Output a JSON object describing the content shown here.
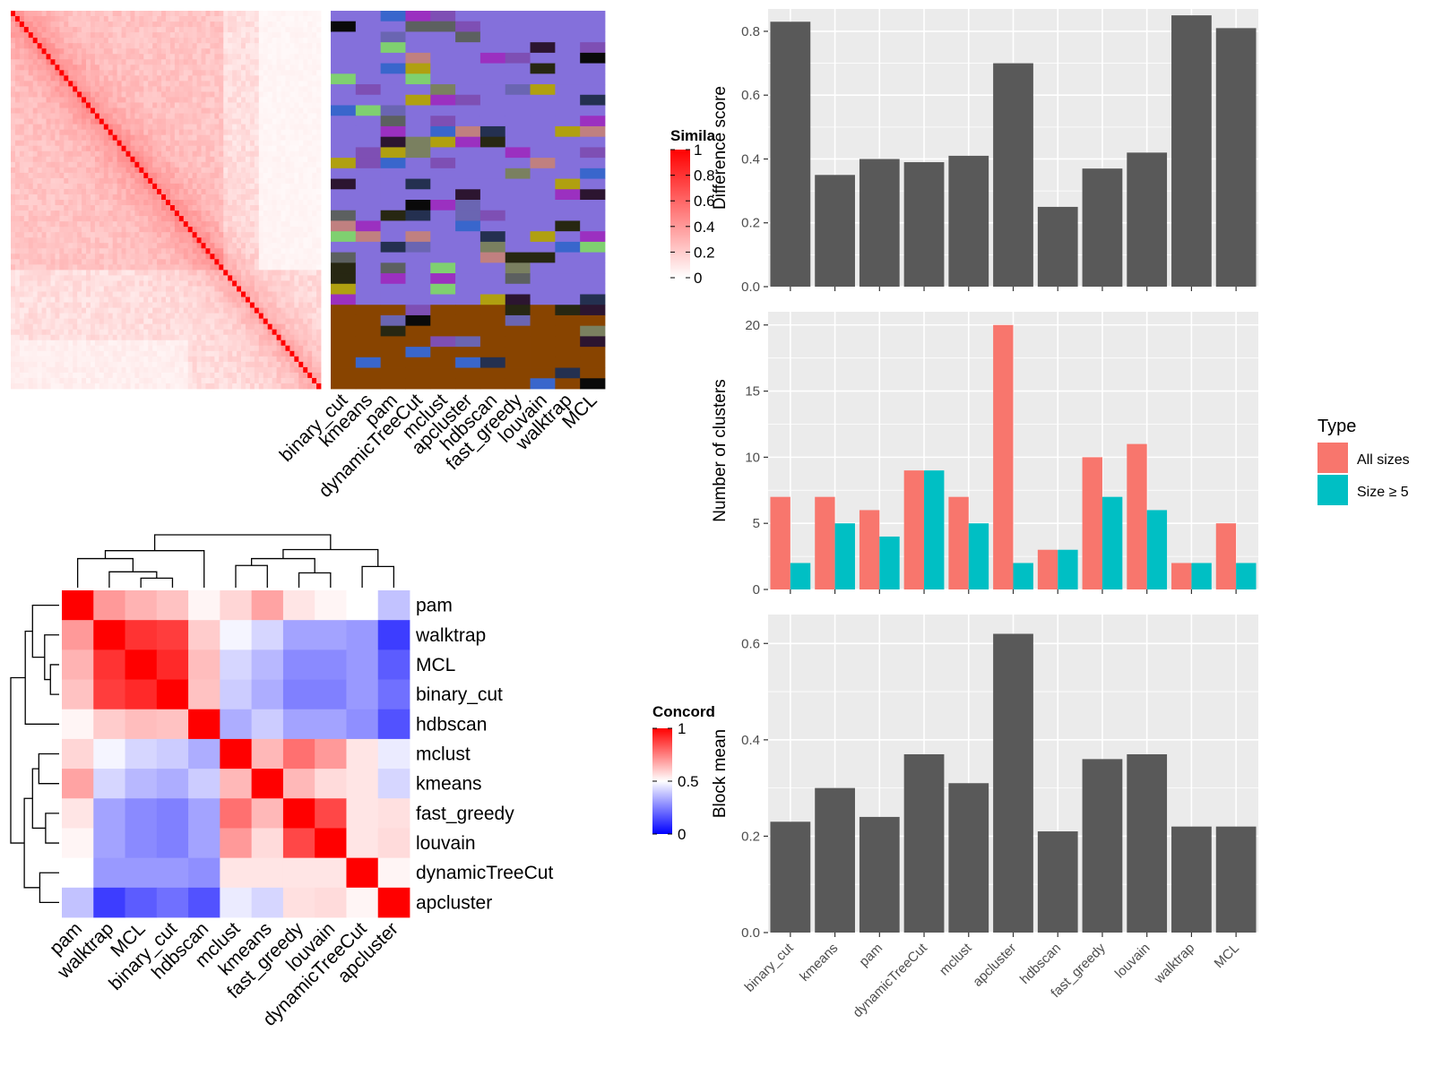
{
  "colors": {
    "panel_bg": "#ebebeb",
    "grid": "#ffffff",
    "bar": "#595959",
    "all_sizes": "#f8766d",
    "size_ge_5": "#00bfc4",
    "heat_low": "#ffffff",
    "heat_high": "#ff0000",
    "conc_low": "#0000ff",
    "conc_mid": "#ffffff",
    "conc_high": "#ff0000",
    "cluster_palette": [
      "#8470db",
      "#6a65b2",
      "#3966cc",
      "#2c1530",
      "#7a8060",
      "#7e4fb4",
      "#0a0a0a",
      "#243050",
      "#272712",
      "#c08080",
      "#9b30c0",
      "#5c6060",
      "#7fd070",
      "#b0a010",
      "#884400",
      "#a090a8",
      "#c0c0c0",
      "#5a4090"
    ]
  },
  "top_left": {
    "legend_title": "Simila",
    "legend_ticks": [
      "1",
      "0.8",
      "0.6",
      "0.4",
      "0.2",
      "0"
    ],
    "methods": [
      "binary_cut",
      "kmeans",
      "pam",
      "dynamicTreeCut",
      "mclust",
      "apcluster",
      "hdbscan",
      "fast_greedy",
      "louvain",
      "walktrap",
      "MCL"
    ]
  },
  "bottom_left": {
    "legend_title": "Concord",
    "legend_ticks": [
      "1",
      "0.5",
      "0"
    ],
    "rows": [
      "pam",
      "walktrap",
      "MCL",
      "binary_cut",
      "hdbscan",
      "mclust",
      "kmeans",
      "fast_greedy",
      "louvain",
      "dynamicTreeCut",
      "apcluster"
    ],
    "cols": [
      "pam",
      "walktrap",
      "MCL",
      "binary_cut",
      "hdbscan",
      "mclust",
      "kmeans",
      "fast_greedy",
      "louvain",
      "dynamicTreeCut",
      "apcluster"
    ],
    "matrix": [
      [
        1.0,
        0.7,
        0.65,
        0.62,
        0.52,
        0.58,
        0.68,
        0.55,
        0.52,
        0.5,
        0.38
      ],
      [
        0.7,
        1.0,
        0.9,
        0.88,
        0.6,
        0.48,
        0.42,
        0.32,
        0.32,
        0.3,
        0.12
      ],
      [
        0.65,
        0.9,
        1.0,
        0.92,
        0.63,
        0.42,
        0.36,
        0.27,
        0.27,
        0.3,
        0.18
      ],
      [
        0.62,
        0.88,
        0.92,
        1.0,
        0.62,
        0.4,
        0.34,
        0.25,
        0.25,
        0.3,
        0.22
      ],
      [
        0.52,
        0.6,
        0.63,
        0.62,
        1.0,
        0.34,
        0.4,
        0.32,
        0.32,
        0.28,
        0.16
      ],
      [
        0.58,
        0.48,
        0.42,
        0.4,
        0.34,
        1.0,
        0.64,
        0.78,
        0.7,
        0.55,
        0.46
      ],
      [
        0.68,
        0.42,
        0.36,
        0.34,
        0.4,
        0.64,
        1.0,
        0.64,
        0.57,
        0.55,
        0.42
      ],
      [
        0.55,
        0.32,
        0.27,
        0.25,
        0.32,
        0.78,
        0.64,
        1.0,
        0.86,
        0.55,
        0.56
      ],
      [
        0.52,
        0.32,
        0.27,
        0.25,
        0.32,
        0.7,
        0.57,
        0.86,
        1.0,
        0.55,
        0.57
      ],
      [
        0.5,
        0.3,
        0.3,
        0.3,
        0.28,
        0.55,
        0.55,
        0.55,
        0.55,
        1.0,
        0.52
      ],
      [
        0.38,
        0.12,
        0.18,
        0.22,
        0.16,
        0.46,
        0.42,
        0.56,
        0.57,
        0.52,
        1.0
      ]
    ]
  },
  "chart_data": [
    {
      "type": "bar",
      "categories": [
        "binary_cut",
        "kmeans",
        "pam",
        "dynamicTreeCut",
        "mclust",
        "apcluster",
        "hdbscan",
        "fast_greedy",
        "louvain",
        "walktrap",
        "MCL"
      ],
      "values": [
        0.83,
        0.35,
        0.4,
        0.39,
        0.41,
        0.7,
        0.25,
        0.37,
        0.42,
        0.85,
        0.81
      ],
      "ylabel": "Difference score",
      "ylim": [
        0,
        0.87
      ],
      "yticks": [
        "0.0",
        "0.2",
        "0.4",
        "0.6",
        "0.8"
      ]
    },
    {
      "type": "bar",
      "categories": [
        "binary_cut",
        "kmeans",
        "pam",
        "dynamicTreeCut",
        "mclust",
        "apcluster",
        "hdbscan",
        "fast_greedy",
        "louvain",
        "walktrap",
        "MCL"
      ],
      "series": [
        {
          "name": "All sizes",
          "values": [
            7,
            7,
            6,
            9,
            7,
            20,
            3,
            10,
            11,
            2,
            5
          ]
        },
        {
          "name": "Size ≥ 5",
          "values": [
            2,
            5,
            4,
            9,
            5,
            2,
            3,
            7,
            6,
            2,
            2
          ]
        }
      ],
      "ylabel": "Number of clusters",
      "ylim": [
        0,
        21
      ],
      "yticks": [
        "0",
        "5",
        "10",
        "15",
        "20"
      ],
      "legend_title": "Type",
      "legend_placement": "right"
    },
    {
      "type": "bar",
      "categories": [
        "binary_cut",
        "kmeans",
        "pam",
        "dynamicTreeCut",
        "mclust",
        "apcluster",
        "hdbscan",
        "fast_greedy",
        "louvain",
        "walktrap",
        "MCL"
      ],
      "values": [
        0.23,
        0.3,
        0.24,
        0.37,
        0.31,
        0.62,
        0.21,
        0.36,
        0.37,
        0.22,
        0.22
      ],
      "ylabel": "Block mean",
      "ylim": [
        0,
        0.66
      ],
      "yticks": [
        "0.0",
        "0.2",
        "0.4",
        "0.6"
      ]
    }
  ]
}
